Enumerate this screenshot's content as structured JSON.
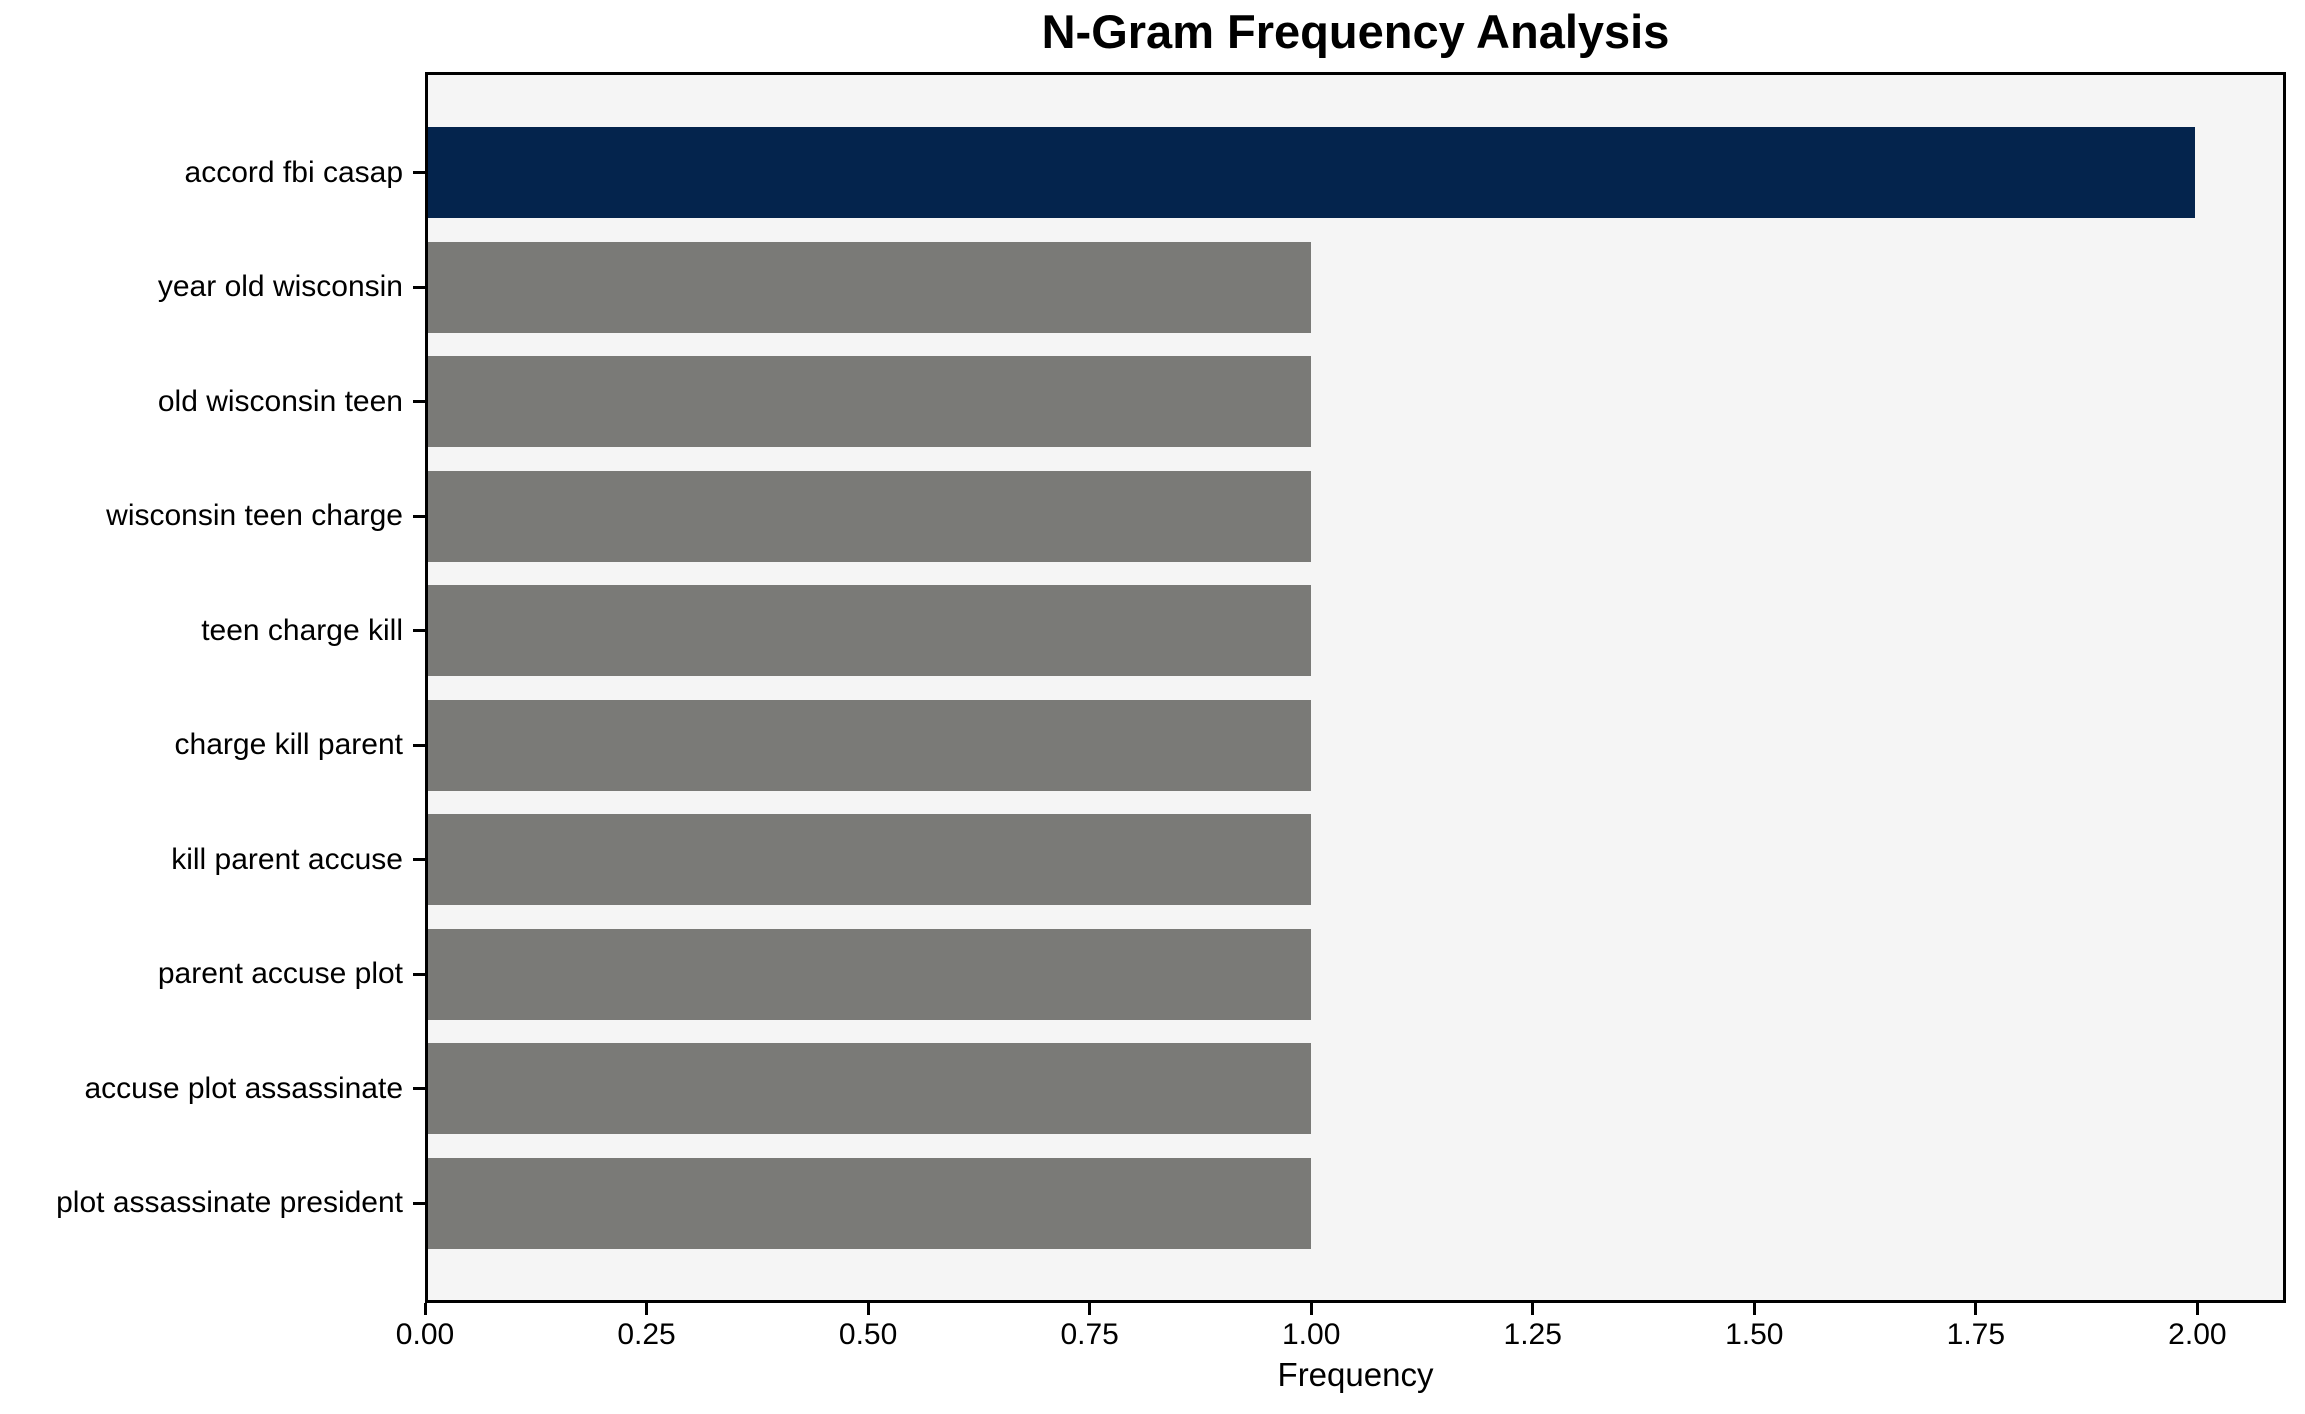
{
  "chart_data": {
    "type": "bar",
    "orientation": "horizontal",
    "title": "N-Gram Frequency Analysis",
    "xlabel": "Frequency",
    "ylabel": "",
    "categories": [
      "accord fbi casap",
      "year old wisconsin",
      "old wisconsin teen",
      "wisconsin teen charge",
      "teen charge kill",
      "charge kill parent",
      "kill parent accuse",
      "parent accuse plot",
      "accuse plot assassinate",
      "plot assassinate president"
    ],
    "values": [
      2,
      1,
      1,
      1,
      1,
      1,
      1,
      1,
      1,
      1
    ],
    "bar_colors": [
      "#04244d",
      "#7a7a77",
      "#7a7a77",
      "#7a7a77",
      "#7a7a77",
      "#7a7a77",
      "#7a7a77",
      "#7a7a77",
      "#7a7a77",
      "#7a7a77"
    ],
    "xlim": [
      0,
      2.1
    ],
    "x_ticks": [
      {
        "value": 0.0,
        "label": "0.00"
      },
      {
        "value": 0.25,
        "label": "0.25"
      },
      {
        "value": 0.5,
        "label": "0.50"
      },
      {
        "value": 0.75,
        "label": "0.75"
      },
      {
        "value": 1.0,
        "label": "1.00"
      },
      {
        "value": 1.25,
        "label": "1.25"
      },
      {
        "value": 1.5,
        "label": "1.50"
      },
      {
        "value": 1.75,
        "label": "1.75"
      },
      {
        "value": 2.0,
        "label": "2.00"
      }
    ],
    "grid": false,
    "legend_position": "none",
    "colors": {
      "highlight_bar": "#04244d",
      "default_bar": "#7a7a77",
      "plot_background": "#f5f5f5",
      "figure_background": "#ffffff",
      "spine": "#000000",
      "text": "#000000"
    }
  }
}
